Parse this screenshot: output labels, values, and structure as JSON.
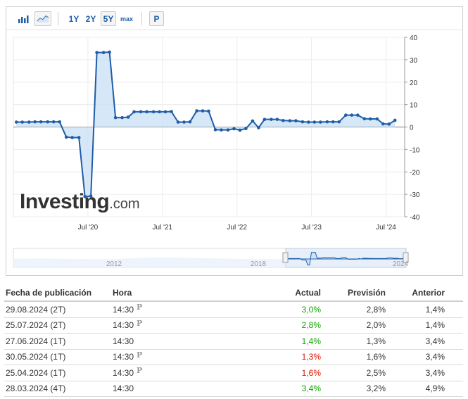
{
  "toolbar": {
    "bar_chart_icon": "bar-chart-icon",
    "line_chart_icon": "line-chart-icon",
    "ranges": [
      "1Y",
      "2Y",
      "5Y",
      "max"
    ],
    "selected_range": "5Y",
    "p_label": "P"
  },
  "logo": {
    "text": "Investing",
    "suffix": ".com"
  },
  "colors": {
    "line": "#1f5da8",
    "fill": "#cfe3f7",
    "green": "#0ea600",
    "red": "#d91400"
  },
  "chart_data": {
    "type": "area",
    "x_ticks": [
      "Jul '20",
      "Jul '21",
      "Jul '22",
      "Jul '23",
      "Jul '24"
    ],
    "y_ticks": [
      "40",
      "30",
      "20",
      "10",
      "0",
      "-10",
      "-20",
      "-30",
      "-40"
    ],
    "ylim": [
      -40,
      40
    ],
    "xlim": [
      2019.5,
      2024.75
    ],
    "grid": true,
    "series": [
      {
        "x": [
          2019.54,
          2019.62,
          2019.71,
          2019.79,
          2019.87,
          2019.96,
          2020.04,
          2020.12,
          2020.21,
          2020.29,
          2020.38,
          2020.46,
          2020.54,
          2020.62,
          2020.71,
          2020.79,
          2020.87,
          2020.96,
          2021.04,
          2021.12,
          2021.21,
          2021.29,
          2021.38,
          2021.46,
          2021.54,
          2021.62,
          2021.71,
          2021.79,
          2021.87,
          2021.96,
          2022.04,
          2022.12,
          2022.21,
          2022.29,
          2022.38,
          2022.46,
          2022.54,
          2022.62,
          2022.71,
          2022.79,
          2022.87,
          2022.96,
          2023.04,
          2023.12,
          2023.21,
          2023.29,
          2023.38,
          2023.46,
          2023.54,
          2023.62,
          2023.71,
          2023.79,
          2023.87,
          2023.96,
          2024.04,
          2024.12,
          2024.21,
          2024.29,
          2024.38,
          2024.46,
          2024.54,
          2024.62
        ],
        "values": [
          2.2,
          2.2,
          2.2,
          2.3,
          2.3,
          2.3,
          2.3,
          2.3,
          -4.5,
          -4.7,
          -4.7,
          -31,
          -30.8,
          33.2,
          33.2,
          33.4,
          4.2,
          4.2,
          4.4,
          6.8,
          6.8,
          6.8,
          6.8,
          6.8,
          6.8,
          6.9,
          2.2,
          2.2,
          2.3,
          7.2,
          7.2,
          7.1,
          -1.2,
          -1.3,
          -1.3,
          -0.8,
          -1.4,
          -0.7,
          2.7,
          -0.3,
          3.4,
          3.4,
          3.4,
          2.9,
          2.8,
          2.8,
          2.3,
          2.2,
          2.2,
          2.2,
          2.3,
          2.3,
          2.3,
          5.3,
          5.3,
          5.3,
          3.7,
          3.6,
          3.6,
          1.4,
          1.3,
          3.0
        ]
      }
    ]
  },
  "navigator": {
    "labels": [
      "2012",
      "2018",
      "2024"
    ]
  },
  "table": {
    "headers": {
      "date": "Fecha de publicación",
      "time": "Hora",
      "actual": "Actual",
      "forecast": "Previsión",
      "previous": "Anterior"
    },
    "rows": [
      {
        "date": "29.08.2024 (2T)",
        "time": "14:30",
        "p": "P",
        "actual": "3,0%",
        "actual_color": "green",
        "forecast": "2,8%",
        "previous": "1,4%"
      },
      {
        "date": "25.07.2024 (2T)",
        "time": "14:30",
        "p": "P",
        "actual": "2,8%",
        "actual_color": "green",
        "forecast": "2,0%",
        "previous": "1,4%"
      },
      {
        "date": "27.06.2024 (1T)",
        "time": "14:30",
        "p": "",
        "actual": "1,4%",
        "actual_color": "green",
        "forecast": "1,3%",
        "previous": "3,4%"
      },
      {
        "date": "30.05.2024 (1T)",
        "time": "14:30",
        "p": "P",
        "actual": "1,3%",
        "actual_color": "red",
        "forecast": "1,6%",
        "previous": "3,4%"
      },
      {
        "date": "25.04.2024 (1T)",
        "time": "14:30",
        "p": "P",
        "actual": "1,6%",
        "actual_color": "red",
        "forecast": "2,5%",
        "previous": "3,4%"
      },
      {
        "date": "28.03.2024 (4T)",
        "time": "14:30",
        "p": "",
        "actual": "3,4%",
        "actual_color": "green",
        "forecast": "3,2%",
        "previous": "4,9%"
      }
    ]
  }
}
